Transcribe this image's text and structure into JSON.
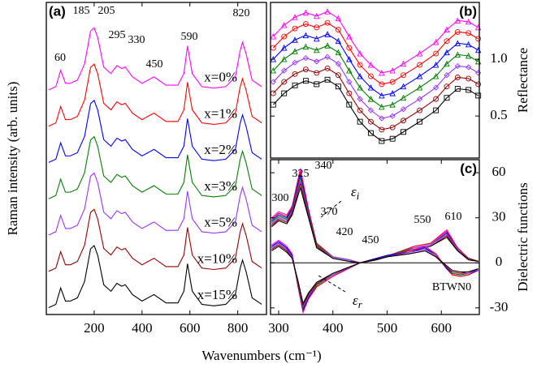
{
  "chart_data": [
    {
      "type": "line",
      "panel_label": "(a)",
      "ylabel": "Raman intensity (arb. units)",
      "xlabel": "Wavenumbers (cm⁻¹)",
      "xlim": [
        0,
        920
      ],
      "ylim": [
        0,
        8.6
      ],
      "xticks": [
        200,
        400,
        600,
        800
      ],
      "x": [
        10,
        40,
        60,
        80,
        100,
        130,
        160,
        185,
        200,
        215,
        240,
        270,
        295,
        315,
        330,
        360,
        400,
        450,
        500,
        550,
        575,
        590,
        610,
        650,
        700,
        750,
        790,
        810,
        820,
        835,
        860,
        900
      ],
      "series": [
        {
          "name": "x=0%",
          "color": "#ff00ff",
          "values": [
            6.19,
            6.28,
            6.73,
            6.37,
            6.37,
            6.46,
            6.91,
            7.81,
            7.9,
            7.63,
            6.82,
            6.64,
            6.86,
            6.78,
            6.82,
            6.55,
            6.37,
            6.55,
            6.32,
            6.32,
            6.64,
            7.4,
            6.64,
            6.28,
            6.24,
            6.28,
            6.55,
            7.27,
            7.5,
            7.18,
            6.46,
            6.28
          ]
        },
        {
          "name": "x=1%",
          "color": "#ff0000",
          "values": [
            5.19,
            5.28,
            5.73,
            5.37,
            5.37,
            5.46,
            5.91,
            6.81,
            6.9,
            6.63,
            5.82,
            5.64,
            5.86,
            5.78,
            5.82,
            5.55,
            5.37,
            5.55,
            5.32,
            5.32,
            5.64,
            6.4,
            5.64,
            5.28,
            5.24,
            5.28,
            5.55,
            6.27,
            6.5,
            6.18,
            5.46,
            5.28
          ]
        },
        {
          "name": "x=2%",
          "color": "#0000ff",
          "values": [
            4.19,
            4.28,
            4.73,
            4.37,
            4.37,
            4.46,
            4.91,
            5.81,
            5.9,
            5.63,
            4.82,
            4.64,
            4.86,
            4.78,
            4.82,
            4.55,
            4.37,
            4.55,
            4.32,
            4.32,
            4.64,
            5.4,
            4.64,
            4.28,
            4.24,
            4.28,
            4.55,
            5.27,
            5.5,
            5.18,
            4.46,
            4.28
          ]
        },
        {
          "name": "x=3%",
          "color": "#008000",
          "values": [
            3.19,
            3.28,
            3.73,
            3.37,
            3.37,
            3.46,
            3.91,
            4.81,
            4.9,
            4.63,
            3.82,
            3.64,
            3.86,
            3.78,
            3.82,
            3.55,
            3.37,
            3.55,
            3.32,
            3.32,
            3.64,
            4.4,
            3.64,
            3.28,
            3.24,
            3.28,
            3.55,
            4.27,
            4.5,
            4.18,
            3.46,
            3.28
          ]
        },
        {
          "name": "x=5%",
          "color": "#9933ff",
          "values": [
            2.19,
            2.28,
            2.73,
            2.37,
            2.37,
            2.46,
            2.91,
            3.81,
            3.9,
            3.63,
            2.82,
            2.64,
            2.86,
            2.78,
            2.82,
            2.55,
            2.37,
            2.55,
            2.32,
            2.32,
            2.64,
            3.4,
            2.64,
            2.28,
            2.24,
            2.28,
            2.55,
            3.27,
            3.5,
            3.18,
            2.46,
            2.28
          ]
        },
        {
          "name": "x=10%",
          "color": "#990000",
          "values": [
            1.19,
            1.28,
            1.73,
            1.37,
            1.37,
            1.46,
            1.91,
            2.81,
            2.9,
            2.63,
            1.82,
            1.64,
            1.86,
            1.78,
            1.82,
            1.55,
            1.37,
            1.55,
            1.32,
            1.32,
            1.64,
            2.4,
            1.64,
            1.28,
            1.24,
            1.28,
            1.55,
            2.27,
            2.5,
            2.18,
            1.46,
            1.28
          ]
        },
        {
          "name": "x=15%",
          "color": "#000000",
          "values": [
            0.19,
            0.28,
            0.73,
            0.37,
            0.37,
            0.46,
            0.91,
            1.81,
            1.9,
            1.63,
            0.82,
            0.64,
            0.86,
            0.78,
            0.82,
            0.55,
            0.37,
            0.55,
            0.32,
            0.32,
            0.64,
            1.4,
            0.64,
            0.28,
            0.24,
            0.28,
            0.55,
            1.27,
            1.5,
            1.18,
            0.46,
            0.28
          ]
        }
      ],
      "annotations": [
        "60",
        "185",
        "205",
        "295",
        "330",
        "450",
        "590",
        "820"
      ]
    },
    {
      "type": "line",
      "panel_label": "(b)",
      "ylabel": "Reflectance",
      "xlim": [
        285,
        670
      ],
      "ylim": [
        0.13,
        1.5
      ],
      "yticks": [
        {
          "value": 0.5,
          "label": "0.5"
        },
        {
          "value": 1,
          "label": "1.0"
        }
      ],
      "x": [
        290,
        310,
        330,
        350,
        370,
        390,
        410,
        430,
        450,
        470,
        490,
        510,
        530,
        560,
        590,
        610,
        630,
        650,
        668
      ],
      "series": [
        {
          "color": "#ff00ff",
          "marker": "triangle",
          "values": [
            1.2,
            1.3,
            1.37,
            1.41,
            1.38,
            1.42,
            1.36,
            1.2,
            1.05,
            0.95,
            0.88,
            0.9,
            0.96,
            1.05,
            1.15,
            1.26,
            1.34,
            1.33,
            1.28
          ]
        },
        {
          "color": "#ff0000",
          "marker": "circle",
          "values": [
            1.1,
            1.2,
            1.27,
            1.31,
            1.28,
            1.32,
            1.26,
            1.1,
            0.95,
            0.85,
            0.78,
            0.8,
            0.86,
            0.95,
            1.05,
            1.16,
            1.24,
            1.23,
            1.18
          ]
        },
        {
          "color": "#0000ff",
          "marker": "triangle",
          "values": [
            1.0,
            1.1,
            1.17,
            1.21,
            1.18,
            1.22,
            1.16,
            1.0,
            0.85,
            0.75,
            0.68,
            0.7,
            0.76,
            0.85,
            0.95,
            1.06,
            1.14,
            1.13,
            1.08
          ]
        },
        {
          "color": "#008000",
          "marker": "triangle",
          "values": [
            0.9,
            1.0,
            1.07,
            1.11,
            1.08,
            1.12,
            1.06,
            0.9,
            0.75,
            0.65,
            0.58,
            0.6,
            0.66,
            0.75,
            0.85,
            0.96,
            1.04,
            1.03,
            0.98
          ]
        },
        {
          "color": "#9933ff",
          "marker": "diamond",
          "values": [
            0.8,
            0.9,
            0.97,
            1.01,
            0.98,
            1.02,
            0.96,
            0.8,
            0.65,
            0.55,
            0.48,
            0.5,
            0.56,
            0.65,
            0.75,
            0.86,
            0.94,
            0.93,
            0.88
          ]
        },
        {
          "color": "#990000",
          "marker": "circle",
          "values": [
            0.7,
            0.8,
            0.87,
            0.91,
            0.88,
            0.92,
            0.86,
            0.7,
            0.55,
            0.45,
            0.38,
            0.4,
            0.46,
            0.55,
            0.65,
            0.76,
            0.84,
            0.83,
            0.78
          ]
        },
        {
          "color": "#000000",
          "marker": "square",
          "values": [
            0.6,
            0.7,
            0.77,
            0.81,
            0.78,
            0.82,
            0.76,
            0.6,
            0.45,
            0.35,
            0.28,
            0.3,
            0.36,
            0.45,
            0.55,
            0.66,
            0.74,
            0.73,
            0.68
          ]
        }
      ]
    },
    {
      "type": "line",
      "panel_label": "(c)",
      "ylabel": "Dielectric functions",
      "xlim": [
        285,
        670
      ],
      "ylim": [
        -34.4,
        68.7
      ],
      "xticks": [
        300,
        400,
        500,
        600
      ],
      "yticks": [
        -30,
        0,
        30,
        60
      ],
      "zero_line": true,
      "groups": [
        {
          "symbol": "ε",
          "subscript": "i",
          "x": [
            287,
            300,
            315,
            325,
            340,
            355,
            370,
            400,
            430,
            450,
            480,
            520,
            550,
            580,
            610,
            630,
            650,
            668
          ],
          "series": [
            {
              "color": "#ff00ff",
              "values": [
                30,
                34,
                32,
                38,
                63,
                36,
                13,
                4,
                2,
                0,
                2,
                7,
                11,
                13,
                22,
                10,
                3,
                1
              ]
            },
            {
              "color": "#ff0000",
              "values": [
                29,
                33,
                31,
                37,
                61,
                35,
                13,
                4,
                2,
                0,
                2,
                7,
                11,
                13,
                21,
                10,
                3,
                1
              ]
            },
            {
              "color": "#0000ff",
              "values": [
                28,
                32,
                30,
                36,
                59,
                34,
                12,
                4,
                2,
                0,
                2,
                7,
                10,
                12,
                20,
                9,
                3,
                1
              ]
            },
            {
              "color": "#008000",
              "values": [
                27,
                31,
                29,
                35,
                57,
                33,
                12,
                4,
                2,
                0,
                2,
                7,
                10,
                12,
                19,
                9,
                3,
                1
              ]
            },
            {
              "color": "#9933ff",
              "values": [
                26,
                30,
                28,
                34,
                55,
                32,
                11,
                4,
                2,
                0,
                2,
                6,
                10,
                12,
                19,
                9,
                3,
                1
              ]
            },
            {
              "color": "#990000",
              "values": [
                25,
                29,
                27,
                33,
                53,
                31,
                11,
                3,
                1,
                0,
                2,
                6,
                9,
                11,
                18,
                8,
                3,
                1
              ]
            },
            {
              "color": "#000000",
              "values": [
                24,
                28,
                26,
                32,
                50,
                30,
                10,
                3,
                1,
                0,
                2,
                6,
                9,
                11,
                17,
                8,
                2,
                1
              ]
            }
          ]
        },
        {
          "symbol": "ε",
          "subscript": "r",
          "x": [
            287,
            300,
            315,
            325,
            335,
            345,
            355,
            370,
            400,
            450,
            500,
            540,
            570,
            590,
            610,
            620,
            635,
            650,
            668
          ],
          "series": [
            {
              "color": "#ff00ff",
              "values": [
                12,
                15,
                11,
                6,
                -15,
                -33,
                -24,
                -16,
                -9,
                0,
                5,
                8,
                11,
                6,
                -4,
                -8,
                -9,
                -8,
                -5
              ]
            },
            {
              "color": "#ff0000",
              "values": [
                11,
                14,
                10,
                5,
                -14,
                -32,
                -24,
                -16,
                -9,
                0,
                5,
                8,
                10,
                6,
                -4,
                -8,
                -9,
                -8,
                -5
              ]
            },
            {
              "color": "#0000ff",
              "values": [
                11,
                14,
                10,
                5,
                -13,
                -31,
                -23,
                -15,
                -8,
                0,
                5,
                7,
                10,
                5,
                -4,
                -7,
                -8,
                -7,
                -5
              ]
            },
            {
              "color": "#008000",
              "values": [
                10,
                13,
                9,
                4,
                -13,
                -30,
                -22,
                -15,
                -8,
                0,
                4,
                7,
                9,
                5,
                -3,
                -7,
                -8,
                -7,
                -4
              ]
            },
            {
              "color": "#9933ff",
              "values": [
                10,
                13,
                9,
                4,
                -12,
                -29,
                -22,
                -14,
                -8,
                0,
                4,
                7,
                9,
                5,
                -3,
                -6,
                -7,
                -7,
                -4
              ]
            },
            {
              "color": "#990000",
              "values": [
                9,
                12,
                8,
                3,
                -12,
                -28,
                -21,
                -14,
                -7,
                0,
                4,
                6,
                8,
                4,
                -3,
                -6,
                -7,
                -6,
                -4
              ]
            },
            {
              "color": "#000000",
              "values": [
                8,
                11,
                7,
                3,
                -11,
                -27,
                -20,
                -13,
                -7,
                0,
                4,
                6,
                8,
                4,
                -2,
                -5,
                -6,
                -6,
                -4
              ]
            }
          ]
        }
      ],
      "annotations": [
        "300",
        "325",
        "340",
        "370",
        "420",
        "450",
        "550",
        "610",
        "BTWN0"
      ]
    }
  ]
}
